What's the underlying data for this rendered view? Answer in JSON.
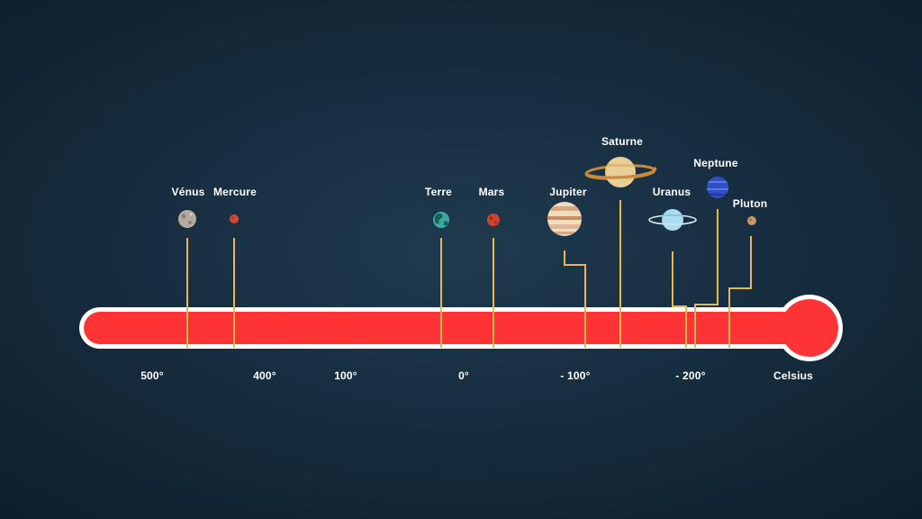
{
  "scale": {
    "unit_label": "Celsius",
    "ticks": [
      {
        "label": "500°",
        "value": 500
      },
      {
        "label": "400°",
        "value": 400
      },
      {
        "label": "100°",
        "value": 100
      },
      {
        "label": "0°",
        "value": 0
      },
      {
        "label": "- 100°",
        "value": -100
      },
      {
        "label": "- 200°",
        "value": -200
      }
    ]
  },
  "planets": [
    {
      "name": "Vénus",
      "icon": "venus-icon",
      "color": "#b4aaa0"
    },
    {
      "name": "Mercure",
      "icon": "mercury-icon",
      "color": "#d9482e"
    },
    {
      "name": "Terre",
      "icon": "earth-icon",
      "color": "#3aa9a4"
    },
    {
      "name": "Mars",
      "icon": "mars-icon",
      "color": "#d2402f"
    },
    {
      "name": "Jupiter",
      "icon": "jupiter-icon",
      "color": "#e9c9a4"
    },
    {
      "name": "Saturne",
      "icon": "saturn-icon",
      "color": "#e8cf96"
    },
    {
      "name": "Uranus",
      "icon": "uranus-icon",
      "color": "#a9dcef"
    },
    {
      "name": "Neptune",
      "icon": "neptune-icon",
      "color": "#2f4fc9"
    },
    {
      "name": "Pluton",
      "icon": "pluto-icon",
      "color": "#c99a6a"
    }
  ],
  "colors": {
    "thermometer_fill": "#fd3335",
    "thermometer_border": "#ffffff",
    "connector": "#e8b84a",
    "background": "#172e40"
  }
}
